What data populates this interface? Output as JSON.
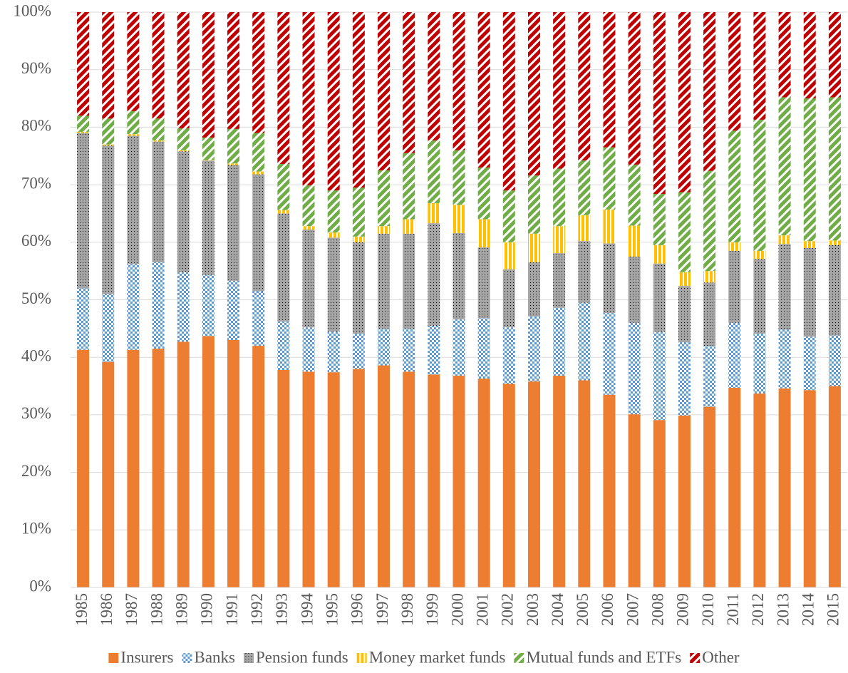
{
  "chart_data": {
    "type": "stacked_bar",
    "categories": [
      "1985",
      "1986",
      "1987",
      "1988",
      "1989",
      "1990",
      "1991",
      "1992",
      "1993",
      "1994",
      "1995",
      "1996",
      "1997",
      "1998",
      "1999",
      "2000",
      "2001",
      "2002",
      "2003",
      "2004",
      "2005",
      "2006",
      "2007",
      "2008",
      "2009",
      "2010",
      "2011",
      "2012",
      "2013",
      "2014",
      "2015"
    ],
    "series": [
      {
        "name": "Insurers",
        "color": "#ed7d31",
        "pattern": "solid",
        "values": [
          41.3,
          39.2,
          41.3,
          41.5,
          42.7,
          43.7,
          43,
          42,
          37.8,
          37.5,
          37.4,
          38,
          38.6,
          37.5,
          37,
          36.8,
          36.3,
          35.4,
          35.8,
          36.8,
          36,
          33.5,
          30.1,
          29.1,
          29.9,
          31.4,
          34.7,
          33.7,
          34.6,
          34.3,
          35
        ]
      },
      {
        "name": "Banks",
        "color": "#5b9bd5",
        "pattern": "checker",
        "values": [
          10.7,
          11.8,
          14.9,
          15,
          12.1,
          10.6,
          10.3,
          9.5,
          8.4,
          7.7,
          7.1,
          6.1,
          6.4,
          7.5,
          8.5,
          9.8,
          10.5,
          9.8,
          11.3,
          11.8,
          13.5,
          14.2,
          15.9,
          15.3,
          12.7,
          10.6,
          11.3,
          10.4,
          10.2,
          9.3,
          8.8
        ]
      },
      {
        "name": "Pension funds",
        "color": "#a5a5a5",
        "pattern": "dots",
        "values": [
          27,
          25.8,
          22.3,
          21,
          21,
          19.9,
          20.1,
          20.3,
          18.8,
          17,
          16.3,
          15.9,
          16.5,
          16.5,
          17.8,
          15,
          12.3,
          10.1,
          9.4,
          9.5,
          10.7,
          12.1,
          11.5,
          11.9,
          9.8,
          11,
          12.5,
          13,
          14.9,
          15.4,
          15.7
        ]
      },
      {
        "name": "Money market funds",
        "color": "#ffc000",
        "pattern": "vertical",
        "values": [
          0.2,
          0.2,
          0.3,
          0.2,
          0.2,
          0.1,
          0.3,
          0.5,
          0.6,
          0.6,
          0.9,
          1,
          1.3,
          2.5,
          3.5,
          4.9,
          4.9,
          4.7,
          5,
          4.7,
          4.5,
          5.9,
          5.4,
          3.2,
          2.4,
          2,
          1.5,
          1.4,
          1.5,
          1.2,
          0.8
        ]
      },
      {
        "name": "Mutual funds and ETFs",
        "color": "#70ad47",
        "pattern": "diagonal",
        "values": [
          2.8,
          4.5,
          4,
          3.8,
          3.8,
          3.9,
          6,
          6.7,
          8,
          7.1,
          7.3,
          8.5,
          9.7,
          11.5,
          10.9,
          9.5,
          9,
          9,
          10.1,
          10,
          9.5,
          10.8,
          10.6,
          8.9,
          13.9,
          17.4,
          19.4,
          22.8,
          24,
          24.8,
          24.9
        ]
      },
      {
        "name": "Other",
        "color": "#c00000",
        "pattern": "diagonal",
        "values": [
          18,
          18.5,
          17.2,
          18.5,
          20.2,
          21.8,
          20.3,
          21,
          26.4,
          30.1,
          31,
          30.5,
          27.5,
          24.5,
          22.3,
          24,
          27,
          31,
          28.4,
          27.2,
          25.8,
          23.5,
          26.5,
          31.6,
          31.3,
          27.6,
          20.6,
          18.7,
          14.8,
          15,
          14.8
        ]
      }
    ],
    "ylim": [
      0,
      100
    ],
    "yticks": [
      {
        "value": 0,
        "label": "0%"
      },
      {
        "value": 10,
        "label": "10%"
      },
      {
        "value": 20,
        "label": "20%"
      },
      {
        "value": 30,
        "label": "30%"
      },
      {
        "value": 40,
        "label": "40%"
      },
      {
        "value": 50,
        "label": "50%"
      },
      {
        "value": 60,
        "label": "60%"
      },
      {
        "value": 70,
        "label": "70%"
      },
      {
        "value": 80,
        "label": "80%"
      },
      {
        "value": 90,
        "label": "90%"
      },
      {
        "value": 100,
        "label": "100%"
      }
    ],
    "grid": true,
    "legend": "bottom"
  }
}
